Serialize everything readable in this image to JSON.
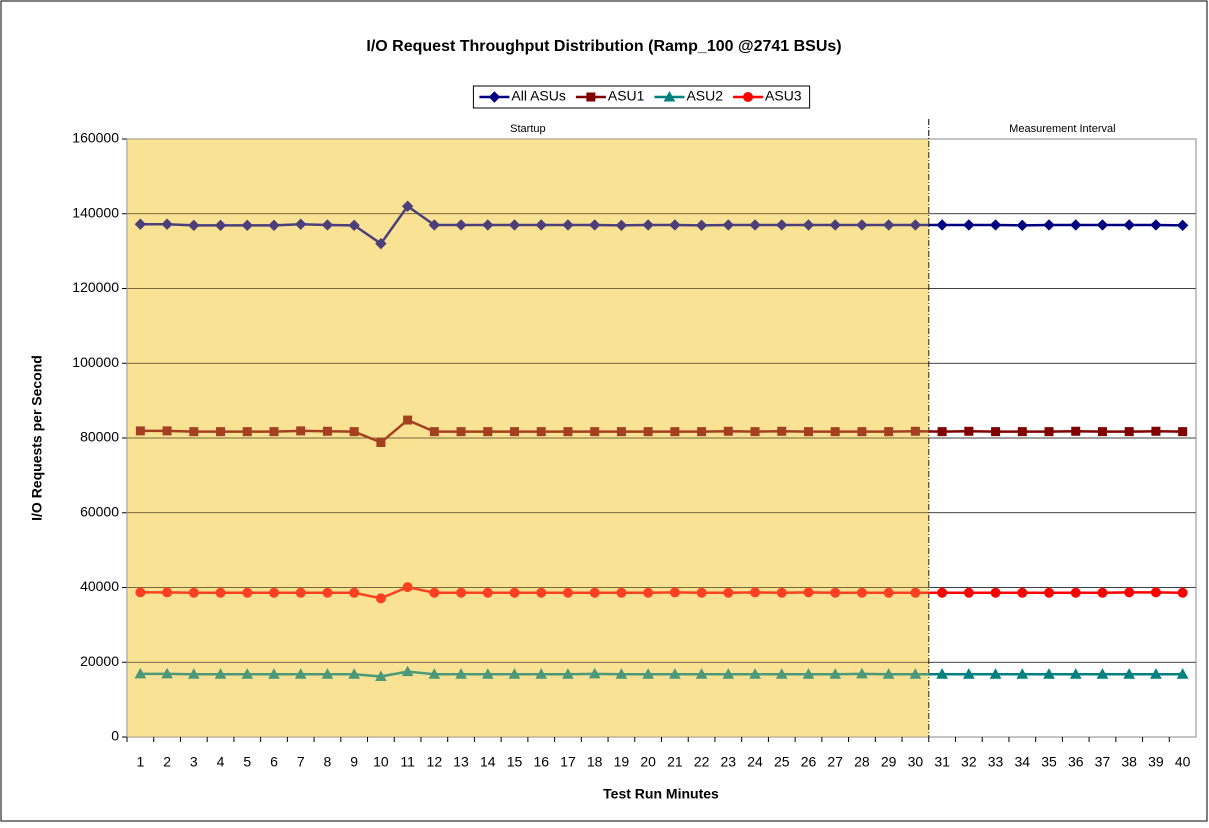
{
  "chart_data": {
    "type": "line",
    "title": "I/O Request Throughput Distribution (Ramp_100 @2741 BSUs)",
    "x_label": "Test Run Minutes",
    "y_label": "I/O Requests per Second",
    "categories": [
      1,
      2,
      3,
      4,
      5,
      6,
      7,
      8,
      9,
      10,
      11,
      12,
      13,
      14,
      15,
      16,
      17,
      18,
      19,
      20,
      21,
      22,
      23,
      24,
      25,
      26,
      27,
      28,
      29,
      30,
      31,
      32,
      33,
      34,
      35,
      36,
      37,
      38,
      39,
      40
    ],
    "series": [
      {
        "name": "All ASUs",
        "color": "#000080",
        "marker": "diamond",
        "values": [
          137200,
          137200,
          136900,
          136900,
          136900,
          136900,
          137200,
          137000,
          136900,
          132000,
          142000,
          137000,
          137000,
          137000,
          137000,
          137000,
          137000,
          137000,
          136900,
          137000,
          137000,
          136900,
          137000,
          137000,
          137000,
          137000,
          137000,
          137000,
          137000,
          137000,
          137000,
          137000,
          137000,
          136900,
          137000,
          137000,
          137000,
          137000,
          137000,
          136900
        ]
      },
      {
        "name": "ASU1",
        "color": "#800000",
        "marker": "square",
        "values": [
          81900,
          81900,
          81700,
          81700,
          81700,
          81700,
          81900,
          81800,
          81700,
          78800,
          84800,
          81700,
          81700,
          81700,
          81700,
          81700,
          81700,
          81700,
          81700,
          81700,
          81700,
          81700,
          81800,
          81700,
          81800,
          81700,
          81700,
          81700,
          81700,
          81800,
          81700,
          81800,
          81700,
          81700,
          81700,
          81800,
          81700,
          81700,
          81800,
          81700
        ]
      },
      {
        "name": "ASU2",
        "color": "#008080",
        "marker": "triangle",
        "values": [
          16900,
          16900,
          16800,
          16800,
          16800,
          16800,
          16800,
          16800,
          16800,
          16200,
          17500,
          16800,
          16800,
          16800,
          16800,
          16800,
          16800,
          16900,
          16800,
          16800,
          16800,
          16800,
          16800,
          16800,
          16800,
          16800,
          16800,
          16900,
          16800,
          16800,
          16800,
          16800,
          16800,
          16800,
          16800,
          16800,
          16800,
          16800,
          16800,
          16800
        ]
      },
      {
        "name": "ASU3",
        "color": "#ff0000",
        "marker": "circle",
        "values": [
          38700,
          38700,
          38600,
          38600,
          38600,
          38600,
          38600,
          38600,
          38600,
          37100,
          40100,
          38600,
          38600,
          38600,
          38600,
          38600,
          38600,
          38600,
          38600,
          38600,
          38700,
          38600,
          38600,
          38700,
          38600,
          38700,
          38600,
          38600,
          38600,
          38600,
          38600,
          38600,
          38600,
          38600,
          38600,
          38600,
          38600,
          38700,
          38700,
          38600
        ]
      }
    ],
    "ylim": [
      0,
      160000
    ],
    "yticks": [
      0,
      20000,
      40000,
      60000,
      80000,
      100000,
      120000,
      140000,
      160000
    ],
    "grid": true,
    "legend": "top",
    "annotations": [
      {
        "text": "Startup",
        "from": 1,
        "to": 30
      },
      {
        "text": "Measurement Interval",
        "from": 31,
        "to": 40
      }
    ]
  }
}
